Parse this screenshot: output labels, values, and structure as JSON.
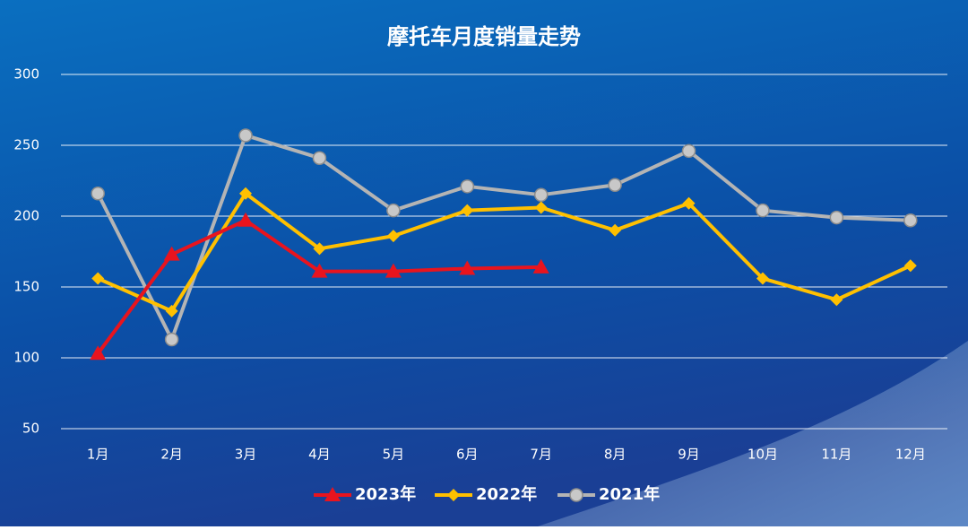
{
  "chart_data": {
    "type": "line",
    "title": "摩托车月度销量走势",
    "categories": [
      "1月",
      "2月",
      "3月",
      "4月",
      "5月",
      "6月",
      "7月",
      "8月",
      "9月",
      "10月",
      "11月",
      "12月"
    ],
    "series": [
      {
        "name": "2023年",
        "color": "#e8141e",
        "marker": "triangle",
        "values": [
          103,
          173,
          197,
          161,
          161,
          163,
          164,
          null,
          null,
          null,
          null,
          null
        ]
      },
      {
        "name": "2022年",
        "color": "#ffc000",
        "marker": "diamond",
        "values": [
          156,
          133,
          216,
          177,
          186,
          204,
          206,
          190,
          209,
          156,
          141,
          165
        ]
      },
      {
        "name": "2021年",
        "color": "#b4b4b4",
        "marker": "circle",
        "values": [
          216,
          113,
          257,
          241,
          204,
          221,
          215,
          222,
          246,
          204,
          199,
          197
        ]
      }
    ],
    "ylim": [
      50,
      300
    ],
    "yticks": [
      50,
      100,
      150,
      200,
      250,
      300
    ],
    "grid": true,
    "legend": "bottom"
  }
}
